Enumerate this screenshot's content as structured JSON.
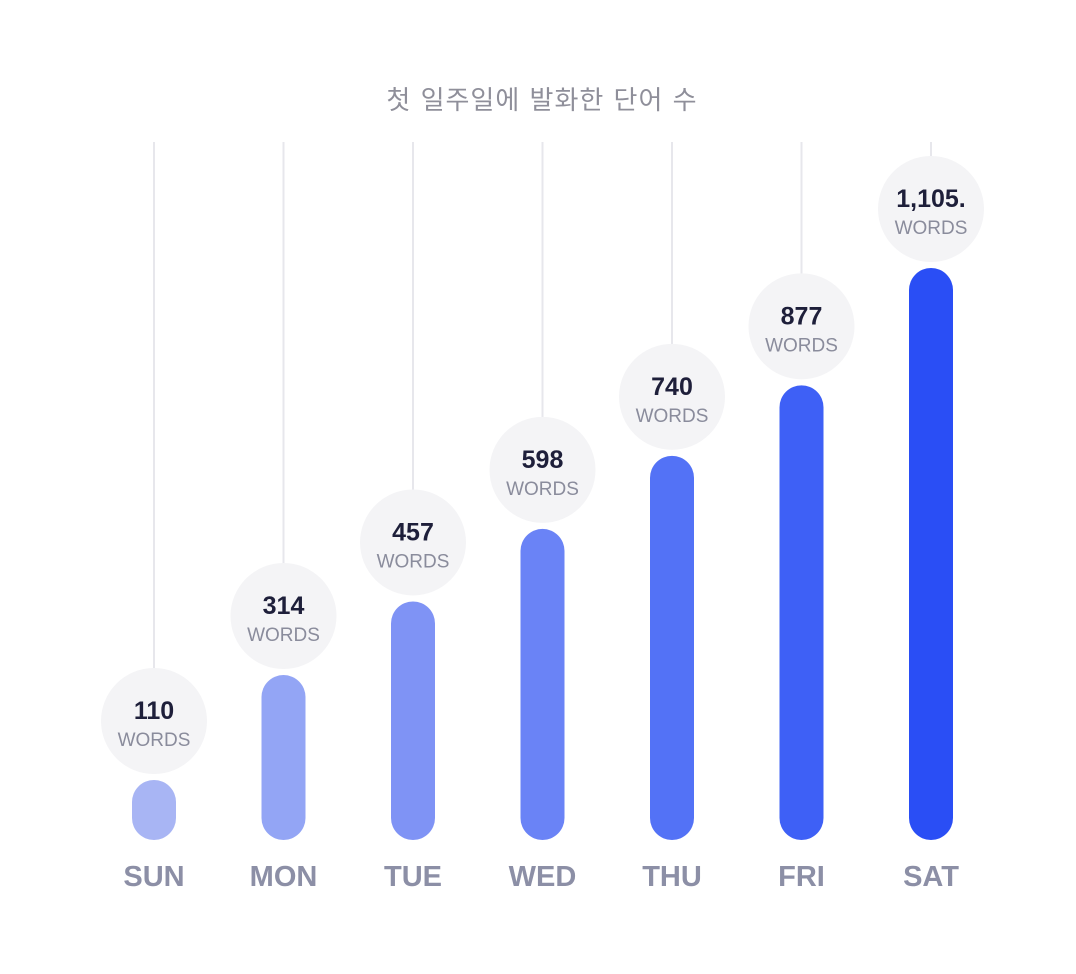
{
  "chart_data": {
    "type": "bar",
    "title": "첫 일주일에 발화한 단어 수",
    "categories": [
      "SUN",
      "MON",
      "TUE",
      "WED",
      "THU",
      "FRI",
      "SAT"
    ],
    "values": [
      110,
      314,
      457,
      598,
      740,
      877,
      1105
    ],
    "value_labels": [
      "110",
      "314",
      "457",
      "598",
      "740",
      "877",
      "1,105."
    ],
    "unit_label": "WORDS",
    "xlabel": "",
    "ylabel": "",
    "grid": false,
    "legend": "none",
    "colors": [
      "#a8b5f4",
      "#93a5f5",
      "#7f93f5",
      "#6a83f6",
      "#5372f6",
      "#3e60f6",
      "#2a4ef5"
    ]
  }
}
